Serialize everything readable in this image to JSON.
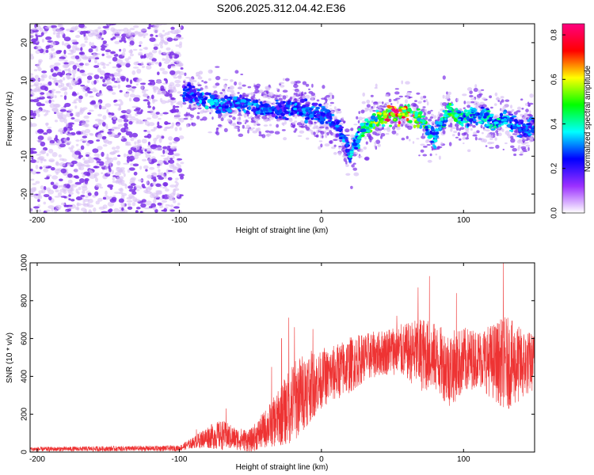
{
  "title": "S206.2025.312.04.42.E36",
  "colors": {
    "snr_line": "#ee3333",
    "spec_low": "#d8c2f5",
    "spec_mid": "#7b2fe8",
    "spec_colormap": [
      "#ffffff",
      "#9b30ff",
      "#0000ff",
      "#00ffff",
      "#00ff00",
      "#ffff00",
      "#ff0000",
      "#ff0080"
    ]
  },
  "chart_data": [
    {
      "type": "heatmap",
      "name": "spectrogram",
      "xlabel": "Height of straight line (km)",
      "ylabel": "Frequency (Hz)",
      "xlim": [
        -205,
        150
      ],
      "ylim": [
        -25,
        25
      ],
      "x_ticks": [
        -200,
        -100,
        0,
        100
      ],
      "y_ticks": [
        20,
        10,
        0,
        -10,
        -20
      ],
      "grid": false,
      "colorbar": {
        "label": "Normalized spectral amplitude",
        "range": [
          0,
          0.85
        ],
        "ticks": [
          0.0,
          0.2,
          0.4,
          0.6,
          0.8
        ],
        "tick_labels": [
          "0.0",
          "0.2",
          "0.4",
          "0.6",
          "0.8"
        ]
      },
      "noise_region_x": [
        -205,
        -98
      ],
      "ridge": {
        "x": [
          -97,
          -90,
          -80,
          -70,
          -60,
          -50,
          -40,
          -30,
          -20,
          -10,
          0,
          10,
          15,
          20,
          25,
          30,
          40,
          50,
          60,
          70,
          75,
          80,
          85,
          90,
          100,
          110,
          120,
          130,
          140,
          150
        ],
        "freq": [
          7,
          6,
          5,
          3,
          4,
          3,
          3,
          2,
          3,
          2,
          1,
          -1,
          -4,
          -9,
          -6,
          -3,
          0,
          1,
          2,
          0,
          -3,
          -5,
          -1,
          2,
          0,
          1,
          -1,
          0,
          -3,
          -2
        ],
        "amplitude": [
          0.25,
          0.3,
          0.35,
          0.3,
          0.3,
          0.3,
          0.3,
          0.25,
          0.3,
          0.3,
          0.3,
          0.3,
          0.3,
          0.35,
          0.35,
          0.45,
          0.55,
          0.8,
          0.7,
          0.55,
          0.4,
          0.35,
          0.4,
          0.5,
          0.4,
          0.35,
          0.4,
          0.35,
          0.3,
          0.3
        ]
      }
    },
    {
      "type": "line",
      "name": "snr",
      "xlabel": "Height of straight line (km)",
      "ylabel": "SNR (10 * v/v)",
      "xlim": [
        -205,
        150
      ],
      "ylim": [
        0,
        1000
      ],
      "x_ticks": [
        -200,
        -100,
        0,
        100
      ],
      "y_ticks": [
        0,
        200,
        400,
        600,
        800,
        1000
      ],
      "grid": false,
      "envelope": {
        "x": [
          -205,
          -100,
          -90,
          -80,
          -70,
          -60,
          -50,
          -40,
          -30,
          -20,
          -10,
          0,
          10,
          20,
          30,
          40,
          50,
          60,
          70,
          80,
          90,
          100,
          110,
          120,
          130,
          140,
          150
        ],
        "mean": [
          15,
          20,
          50,
          80,
          90,
          70,
          60,
          120,
          180,
          260,
          340,
          380,
          420,
          460,
          500,
          520,
          540,
          530,
          520,
          500,
          440,
          480,
          500,
          480,
          470,
          460,
          480
        ],
        "spread": [
          12,
          15,
          30,
          60,
          80,
          60,
          60,
          100,
          150,
          220,
          200,
          150,
          150,
          150,
          130,
          120,
          130,
          150,
          200,
          180,
          200,
          180,
          150,
          200,
          250,
          200,
          150
        ]
      },
      "peaks": [
        {
          "x": -88,
          "y": 120
        },
        {
          "x": -67,
          "y": 230
        },
        {
          "x": -35,
          "y": 450
        },
        {
          "x": -28,
          "y": 600
        },
        {
          "x": -23,
          "y": 710
        },
        {
          "x": -19,
          "y": 660
        },
        {
          "x": -6,
          "y": 650
        },
        {
          "x": 2,
          "y": 550
        },
        {
          "x": 53,
          "y": 720
        },
        {
          "x": 68,
          "y": 870
        },
        {
          "x": 76,
          "y": 930
        },
        {
          "x": 95,
          "y": 840
        },
        {
          "x": 128,
          "y": 1000
        }
      ]
    }
  ]
}
